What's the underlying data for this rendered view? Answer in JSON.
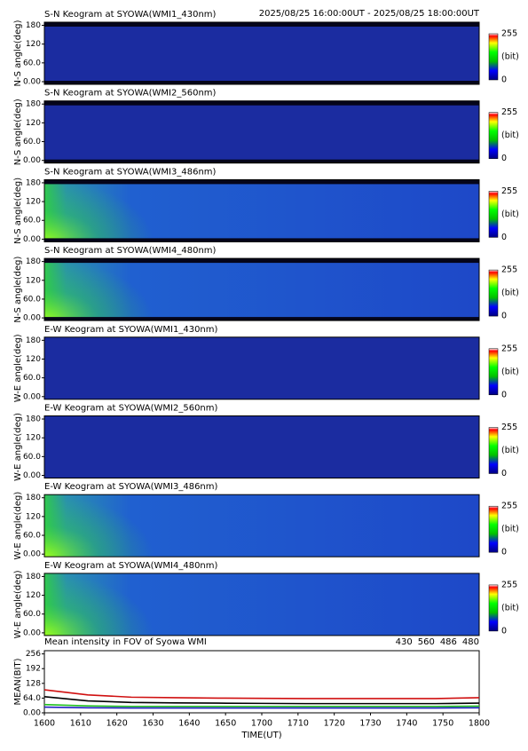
{
  "header": {
    "period": "2025/08/25 16:00:00UT - 2025/08/25 18:00:00UT"
  },
  "keogram_axis": {
    "ylim": [
      0,
      190
    ],
    "yticks": [
      {
        "value": 0,
        "label": "0.00"
      },
      {
        "value": 60,
        "label": "60.0"
      },
      120,
      180
    ]
  },
  "colorbar": {
    "range": [
      0,
      255
    ],
    "unit": "(bit)"
  },
  "keograms": [
    {
      "title": "S-N Keogram at SYOWA(WMI1_430nm)",
      "ylabel": "N-S angle(deg)"
    },
    {
      "title": "S-N Keogram at SYOWA(WMI2_560nm)",
      "ylabel": "N-S angle(deg)"
    },
    {
      "title": "S-N Keogram at SYOWA(WMI3_486nm)",
      "ylabel": "N-S angle(deg)"
    },
    {
      "title": "S-N Keogram at SYOWA(WMI4_480nm)",
      "ylabel": "N-S angle(deg)"
    },
    {
      "title": "E-W Keogram at SYOWA(WMI1_430nm)",
      "ylabel": "W-E angle(deg)"
    },
    {
      "title": "E-W Keogram at SYOWA(WMI2_560nm)",
      "ylabel": "W-E angle(deg)"
    },
    {
      "title": "E-W Keogram at SYOWA(WMI3_486nm)",
      "ylabel": "W-E angle(deg)"
    },
    {
      "title": "E-W Keogram at SYOWA(WMI4_480nm)",
      "ylabel": "W-E angle(deg)"
    }
  ],
  "chart_data": {
    "type": "line",
    "title": "Mean intensity in FOV of Syowa WMI",
    "x_label": "TIME(UT)",
    "y_label": "MEAN(BIT)",
    "x": [
      0,
      12,
      24,
      36,
      48,
      60,
      72,
      84,
      96,
      108,
      120
    ],
    "series": [
      {
        "name": "430",
        "color": "#2020c0",
        "values": [
          25,
          22,
          21,
          21,
          21,
          21,
          21,
          21,
          21,
          21,
          22
        ]
      },
      {
        "name": "560",
        "color": "#20c020",
        "values": [
          36,
          30,
          28,
          28,
          28,
          28,
          28,
          28,
          28,
          28,
          29
        ]
      },
      {
        "name": "486",
        "color": "#d01010",
        "values": [
          100,
          78,
          68,
          66,
          64,
          63,
          62,
          62,
          62,
          62,
          66
        ]
      },
      {
        "name": "480",
        "color": "#000000",
        "values": [
          70,
          52,
          45,
          43,
          42,
          41,
          40,
          40,
          40,
          40,
          42
        ]
      }
    ],
    "xlim": [
      0,
      120
    ],
    "xticks": [
      {
        "value": 0,
        "label": "1600"
      },
      {
        "value": 6,
        "label": "1610"
      },
      {
        "value": 12,
        "label": "1620"
      },
      {
        "value": 18,
        "label": "1630"
      },
      {
        "value": 24,
        "label": "1640"
      },
      {
        "value": 30,
        "label": "1650"
      },
      {
        "value": 36,
        "label": "1700"
      },
      {
        "value": 42,
        "label": "1710"
      },
      {
        "value": 48,
        "label": "1720"
      },
      {
        "value": 54,
        "label": "1730"
      },
      {
        "value": 60,
        "label": "1740"
      },
      {
        "value": 66,
        "label": "1750"
      },
      {
        "value": 72,
        "label": "1800"
      }
    ],
    "ylim": [
      0,
      270
    ],
    "yticks": [
      {
        "value": 0,
        "label": "0.00"
      },
      {
        "value": 64,
        "label": "64.0"
      },
      128,
      192,
      256
    ]
  }
}
